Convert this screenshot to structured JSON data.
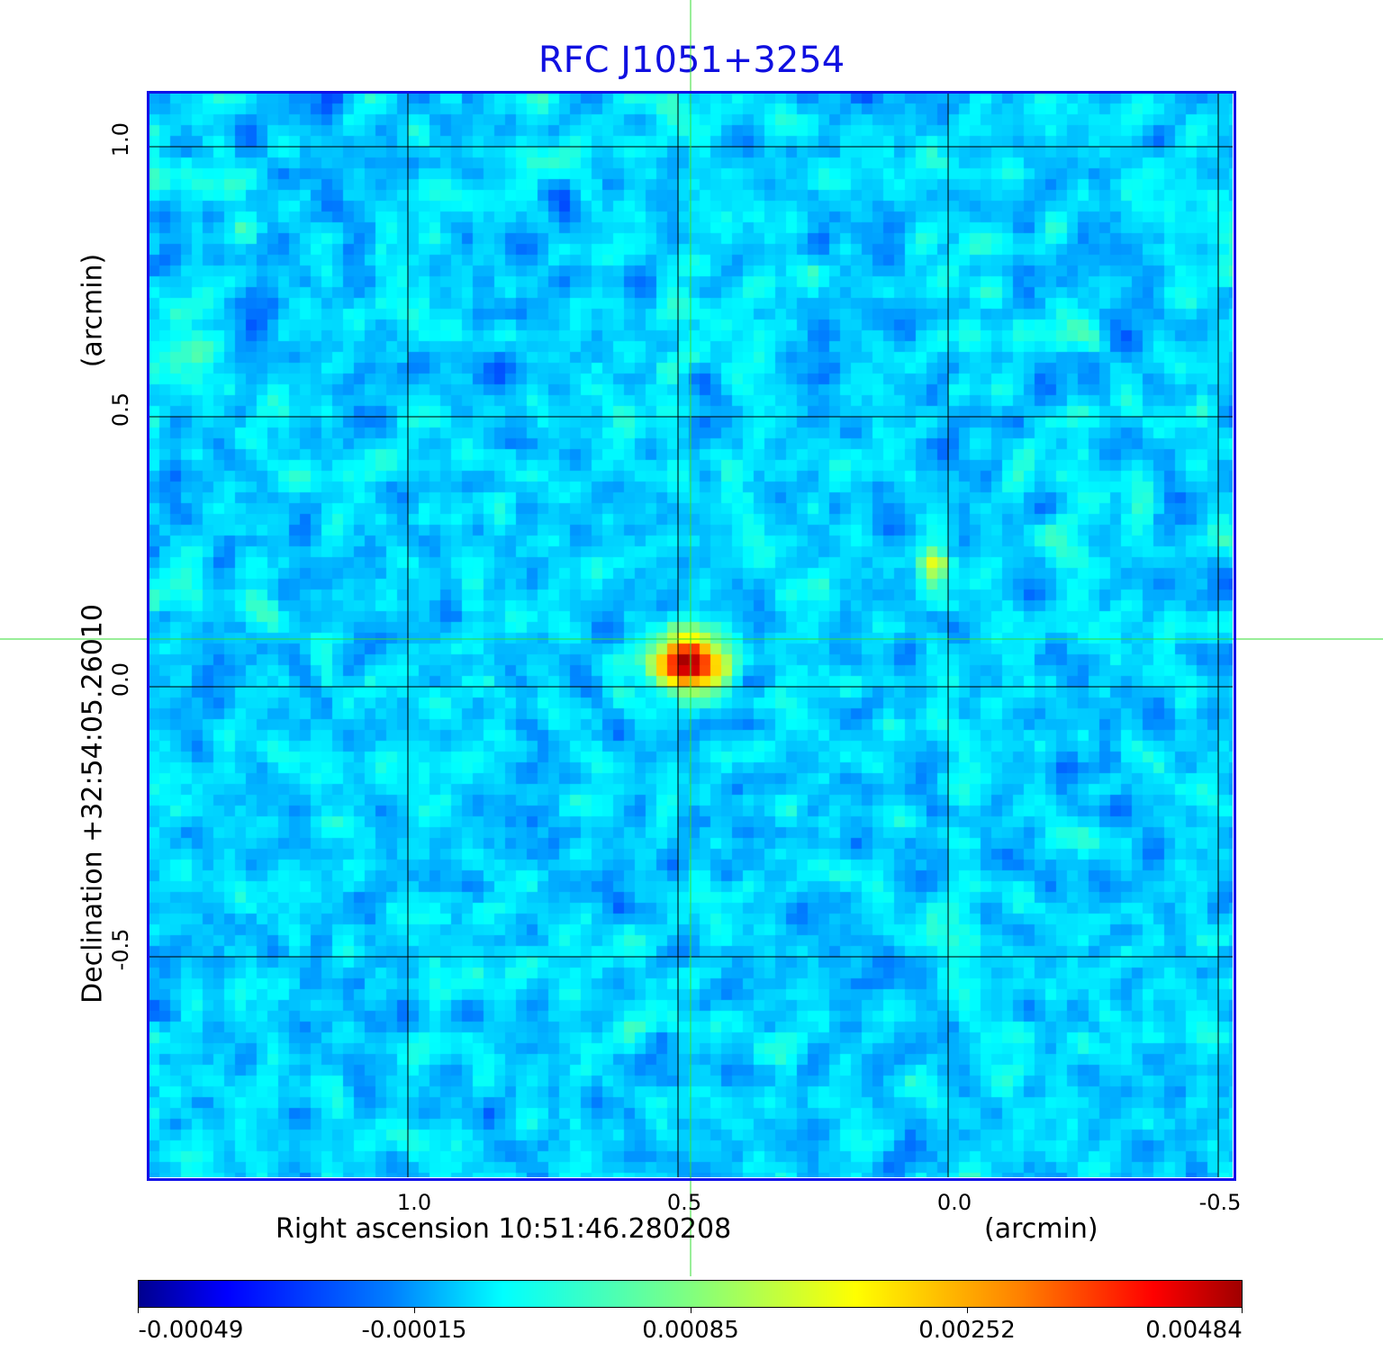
{
  "chart_data": {
    "type": "heatmap",
    "title": "RFC J1051+3254",
    "xlabel": "Right ascension  10:51:46.280208",
    "xunit": "(arcmin)",
    "ylabel": "Declination  +32:54:05.26010",
    "yunit": "(arcmin)",
    "x_ticks": [
      "1.0",
      "0.5",
      "0.0",
      "-0.5"
    ],
    "x_tick_values": [
      1.0,
      0.5,
      0.0,
      -0.5
    ],
    "y_ticks": [
      "1.0",
      "0.5",
      "0.0",
      "-0.5"
    ],
    "y_tick_values": [
      1.0,
      0.5,
      0.0,
      -0.5
    ],
    "xlim": [
      1.48,
      -0.53
    ],
    "ylim": [
      -0.91,
      1.1
    ],
    "grid": true,
    "colormap": "jet",
    "colorbar": {
      "ticks": [
        "-0.00049",
        "-0.00015",
        "0.00085",
        "0.00252",
        "0.00484"
      ],
      "range": [
        -0.00049,
        0.00484
      ]
    },
    "crosshair": {
      "x": 0.477,
      "y": 0.088,
      "color": "#33dd33"
    },
    "sources": [
      {
        "x": 0.48,
        "y": 0.045,
        "peak": 0.00484
      },
      {
        "x": 0.025,
        "y": 0.227,
        "peak": 0.0023
      }
    ],
    "frame_color": "#1010e8",
    "title_color": "#1010e0"
  }
}
